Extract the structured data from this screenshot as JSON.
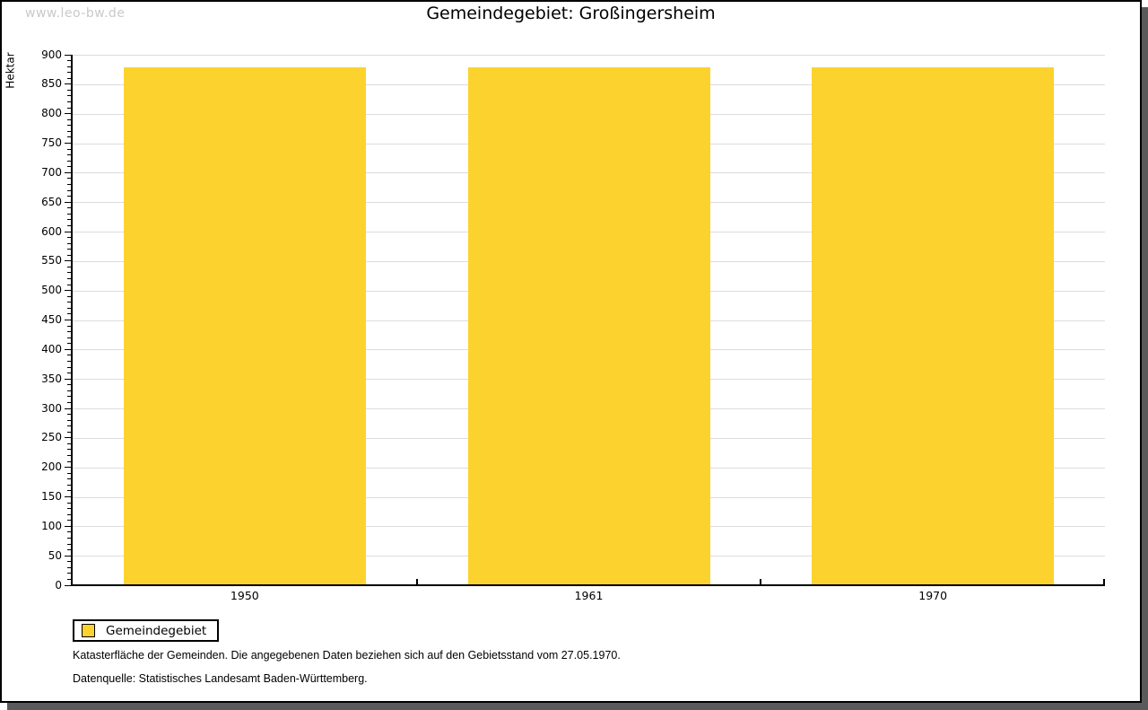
{
  "watermark": "www.leo-bw.de",
  "title": "Gemeindegebiet: Großingersheim",
  "chart_data": {
    "type": "bar",
    "title": "Gemeindegebiet: Großingersheim",
    "categories": [
      "1950",
      "1961",
      "1970"
    ],
    "series": [
      {
        "name": "Gemeindegebiet",
        "values": [
          878,
          878,
          878
        ]
      }
    ],
    "xlabel": "",
    "ylabel": "Hektar",
    "ylim": [
      0,
      900
    ],
    "ytick_step": 50,
    "yminor_tick_step": 10,
    "grid": true,
    "legend_position": "bottom-left",
    "bar_color": "#FCD32E"
  },
  "legend": {
    "label": "Gemeindegebiet"
  },
  "footer": {
    "line1": "Katasterfläche der Gemeinden. Die angegebenen Daten beziehen sich auf den Gebietsstand vom 27.05.1970.",
    "line2": "Datenquelle: Statistisches Landesamt Baden-Württemberg."
  },
  "colors": {
    "bar": "#FCD32E",
    "gridline": "#DCDCDC",
    "shadow": "#5A5A5A",
    "watermark": "#C9C9C9",
    "axis": "#000000"
  }
}
